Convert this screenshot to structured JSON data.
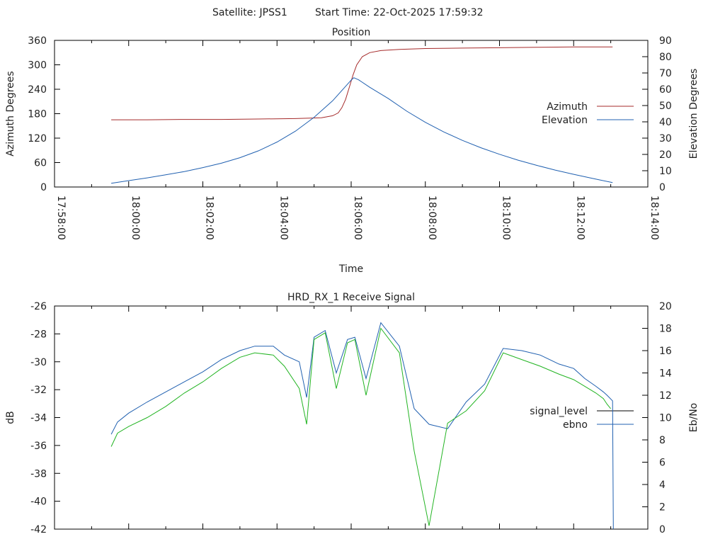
{
  "header": {
    "satellite_label": "Satellite: JPSS1",
    "start_time_label": "Start Time: 22-Oct-2025 17:59:32"
  },
  "chart_data": [
    {
      "type": "line",
      "title": "Position",
      "xlabel": "Time",
      "ylabel": "Azimuth Degrees",
      "y2label": "Elevation Degrees",
      "x_ticks": [
        "17:58:00",
        "18:00:00",
        "18:02:00",
        "18:04:00",
        "18:06:00",
        "18:08:00",
        "18:10:00",
        "18:12:00",
        "18:14:00"
      ],
      "xlim_minutes": [
        0,
        16
      ],
      "ylim": [
        0,
        360
      ],
      "y_ticks": [
        "0",
        "60",
        "120",
        "180",
        "240",
        "300",
        "360"
      ],
      "y2lim": [
        0,
        90
      ],
      "y2_ticks": [
        "0",
        "10",
        "20",
        "30",
        "40",
        "50",
        "60",
        "70",
        "80",
        "90"
      ],
      "legend_position": "right",
      "series": [
        {
          "name": "Azimuth",
          "axis": "left",
          "color": "#a52a2a",
          "x_minutes": [
            1.53,
            2.5,
            3.5,
            4.5,
            5.5,
            6.5,
            7.2,
            7.5,
            7.65,
            7.75,
            7.85,
            7.95,
            8.05,
            8.15,
            8.3,
            8.5,
            8.8,
            9.3,
            10.0,
            11.0,
            12.0,
            13.0,
            14.0,
            15.05
          ],
          "values": [
            165,
            165,
            166,
            166,
            167,
            168,
            170,
            175,
            182,
            195,
            215,
            245,
            275,
            300,
            320,
            330,
            335,
            338,
            340,
            341,
            342,
            343,
            344,
            344
          ]
        },
        {
          "name": "Elevation",
          "axis": "right",
          "color": "#2060b0",
          "x_minutes": [
            1.53,
            2.0,
            2.5,
            3.0,
            3.5,
            4.0,
            4.5,
            5.0,
            5.5,
            6.0,
            6.5,
            7.0,
            7.5,
            7.8,
            8.0,
            8.07,
            8.2,
            8.5,
            9.0,
            9.5,
            10.0,
            10.5,
            11.0,
            11.5,
            12.0,
            12.5,
            13.0,
            13.5,
            14.0,
            14.5,
            15.05
          ],
          "values": [
            2.3,
            3.9,
            5.6,
            7.5,
            9.5,
            11.9,
            14.6,
            18.0,
            22.2,
            27.6,
            34.3,
            42.8,
            52.9,
            60.5,
            65.6,
            67.1,
            65.8,
            61.2,
            54.3,
            46.5,
            39.7,
            33.8,
            28.6,
            24.1,
            20.1,
            16.5,
            13.3,
            10.4,
            7.8,
            5.3,
            2.7
          ]
        }
      ]
    },
    {
      "type": "line",
      "title": "HRD_RX_1 Receive Signal",
      "xlabel": "",
      "ylabel": "dB",
      "y2label": "Eb/No",
      "xlim_minutes": [
        0,
        16
      ],
      "ylim": [
        -42,
        -26
      ],
      "y_ticks": [
        "-42",
        "-40",
        "-38",
        "-36",
        "-34",
        "-32",
        "-30",
        "-28",
        "-26"
      ],
      "y2lim": [
        0,
        20
      ],
      "y2_ticks": [
        "0",
        "2",
        "4",
        "6",
        "8",
        "10",
        "12",
        "14",
        "16",
        "18",
        "20"
      ],
      "legend_position": "right",
      "series": [
        {
          "name": "signal_level",
          "axis": "left",
          "color": "#000000",
          "x_minutes": [],
          "values": []
        },
        {
          "name": "ebno",
          "axis": "right",
          "color": "#2060b0",
          "x_minutes": [
            1.53,
            1.7,
            2.0,
            2.5,
            3.0,
            3.5,
            4.0,
            4.5,
            5.0,
            5.4,
            5.9,
            6.2,
            6.6,
            6.8,
            7.0,
            7.3,
            7.6,
            7.9,
            8.1,
            8.4,
            8.8,
            9.3,
            9.7,
            10.1,
            10.6,
            11.1,
            11.6,
            12.1,
            12.6,
            13.1,
            13.6,
            14.0,
            14.3,
            14.6,
            14.8,
            14.9,
            15.05,
            15.07
          ],
          "values": [
            8.5,
            9.6,
            10.4,
            11.4,
            12.3,
            13.2,
            14.1,
            15.2,
            16.0,
            16.4,
            16.4,
            15.6,
            15.0,
            11.8,
            17.2,
            17.8,
            14.0,
            17.0,
            17.2,
            13.5,
            18.5,
            16.4,
            10.8,
            9.4,
            9.0,
            11.4,
            13.0,
            16.2,
            16.0,
            15.6,
            14.8,
            14.4,
            13.5,
            12.8,
            12.3,
            12.0,
            11.5,
            0.0
          ]
        },
        {
          "name": "",
          "axis": "right",
          "color": "#22b422",
          "x_minutes": [
            1.53,
            1.7,
            2.0,
            2.5,
            3.0,
            3.5,
            4.0,
            4.5,
            5.0,
            5.4,
            5.9,
            6.2,
            6.6,
            6.8,
            7.0,
            7.3,
            7.6,
            7.9,
            8.1,
            8.4,
            8.8,
            9.3,
            9.7,
            10.1,
            10.6,
            11.1,
            11.6,
            12.1,
            12.6,
            13.1,
            13.6,
            14.0,
            14.3,
            14.6,
            14.8,
            14.9,
            15.0
          ],
          "values": [
            7.4,
            8.6,
            9.2,
            10.0,
            11.0,
            12.2,
            13.2,
            14.4,
            15.4,
            15.8,
            15.6,
            14.6,
            12.6,
            9.4,
            17.0,
            17.6,
            12.6,
            16.7,
            17.0,
            12.0,
            18.0,
            15.8,
            7.0,
            0.3,
            9.5,
            10.6,
            12.4,
            15.8,
            15.2,
            14.6,
            13.9,
            13.4,
            12.8,
            12.2,
            11.7,
            11.2,
            10.8
          ]
        }
      ]
    }
  ]
}
